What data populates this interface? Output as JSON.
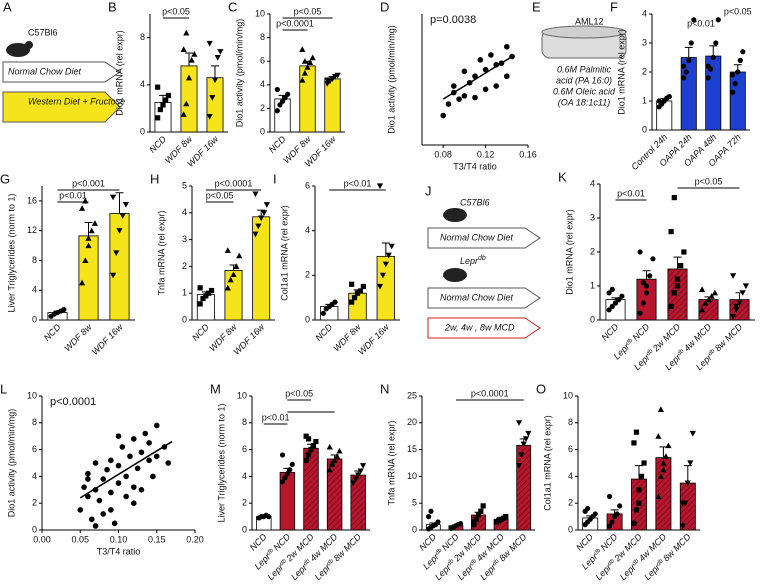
{
  "chart_data": [
    {
      "type": "bar",
      "panel": "B",
      "ylabel": "Dio1 mRNA (rel expr)",
      "categories": [
        "NCD",
        "WDF 8w",
        "WDF 16w"
      ],
      "values": [
        2.5,
        5.6,
        4.6
      ],
      "errors": [
        0.6,
        1.1,
        1.0
      ],
      "colors": [
        "#ffffff",
        "#f5e31b",
        "#f5e31b"
      ],
      "markers": [
        "square",
        "triangle",
        "triangle-down"
      ],
      "points": [
        [
          1.2,
          1.9,
          2.3,
          2.7,
          3.1,
          3.8
        ],
        [
          1.5,
          2.4,
          4.6,
          6.1,
          6.6,
          7.0,
          8.4
        ],
        [
          1.3,
          2.9,
          4.4,
          6.3,
          6.8,
          7.5
        ]
      ],
      "ylim": [
        0,
        10
      ],
      "yticks": [
        0,
        4,
        8
      ],
      "brackets": [
        {
          "from": 0,
          "to": 1,
          "text": "p<0.05"
        }
      ]
    },
    {
      "type": "bar",
      "panel": "C",
      "ylabel": "Dio1 activity (pmol/min/mg)",
      "categories": [
        "NCD",
        "WDF 8w",
        "WDF 16w"
      ],
      "values": [
        2.8,
        5.6,
        4.5
      ],
      "errors": [
        0.3,
        0.4,
        0.2
      ],
      "colors": [
        "#ffffff",
        "#f5e31b",
        "#f5e31b"
      ],
      "markers": [
        "circle",
        "triangle",
        "triangle-down"
      ],
      "points": [
        [
          1.8,
          2.3,
          2.6,
          2.9,
          3.2,
          3.6
        ],
        [
          4.4,
          5.0,
          5.5,
          5.9,
          6.3,
          7.0,
          6.0
        ],
        [
          4.1,
          4.3,
          4.5,
          4.7,
          4.8,
          4.4
        ]
      ],
      "ylim": [
        0,
        10
      ],
      "yticks": [
        0,
        2,
        4,
        6,
        8,
        10
      ],
      "brackets": [
        {
          "from": 0,
          "to": 1,
          "text": "p<0.0001"
        },
        {
          "from": 0,
          "to": 2,
          "text": "p<0.05"
        }
      ]
    },
    {
      "type": "scatter",
      "panel": "D",
      "ylabel": "Dio1 activity (pmol/min/mg)",
      "xlabel": "T3/T4 ratio",
      "annotation": "p=0.0038",
      "x": [
        0.08,
        0.085,
        0.09,
        0.095,
        0.1,
        0.1,
        0.105,
        0.11,
        0.11,
        0.115,
        0.12,
        0.12,
        0.125,
        0.13,
        0.13,
        0.135,
        0.14,
        0.14,
        0.145,
        0.09
      ],
      "y": [
        1.8,
        2.5,
        3.2,
        2.8,
        4.5,
        3.0,
        3.8,
        4.2,
        2.9,
        5.2,
        4.6,
        3.4,
        5.5,
        4.9,
        3.6,
        5.0,
        4.2,
        6.0,
        5.4,
        3.6
      ],
      "fit": {
        "x": [
          0.08,
          0.145
        ],
        "y": [
          2.8,
          5.4
        ]
      },
      "xlim": [
        0.06,
        0.16
      ],
      "xticks": [
        0.08,
        0.12,
        0.16
      ],
      "ylim": [
        0,
        8
      ],
      "yticks": []
    },
    {
      "type": "bar",
      "panel": "F",
      "ylabel": "Dio1 mRNA (rel expr)",
      "categories": [
        "Control 24h",
        "OAPA 24h",
        "OAPA 48h",
        "OAPA 72h"
      ],
      "values": [
        1.0,
        2.5,
        2.55,
        2.0
      ],
      "errors": [
        0.08,
        0.35,
        0.35,
        0.25
      ],
      "colors": [
        "#ffffff",
        "#1f3fd1",
        "#1f3fd1",
        "#1f3fd1"
      ],
      "markers": [
        "circle",
        "circle",
        "circle",
        "circle"
      ],
      "points": [
        [
          0.8,
          0.9,
          1.0,
          1.1,
          1.15,
          1.0
        ],
        [
          1.8,
          2.0,
          2.4,
          3.0,
          3.8,
          2.2
        ],
        [
          1.8,
          2.1,
          2.5,
          3.0,
          3.8,
          2.2
        ],
        [
          1.3,
          1.6,
          2.0,
          2.4,
          2.7,
          1.9
        ]
      ],
      "ylim": [
        0,
        4
      ],
      "yticks": [
        0,
        1,
        2,
        3,
        4
      ],
      "brackets": [
        {
          "from": 1,
          "to": 2,
          "text": "p<0.01",
          "line": false
        },
        {
          "from": 3,
          "to": 3,
          "text": "p<0.05",
          "line": false
        }
      ]
    },
    {
      "type": "bar",
      "panel": "G",
      "ylabel": "Liver Triglycerides (norm to 1)",
      "categories": [
        "NCD",
        "WDF 8w",
        "WDF 16w"
      ],
      "values": [
        1.0,
        11.3,
        14.3
      ],
      "errors": [
        0.2,
        1.8,
        2.8
      ],
      "colors": [
        "#ffffff",
        "#f5e31b",
        "#f5e31b"
      ],
      "markers": [
        "circle",
        "triangle",
        "triangle-down"
      ],
      "points": [
        [
          0.5,
          0.8,
          1.0,
          1.2,
          1.4
        ],
        [
          5,
          8,
          10,
          12,
          13,
          15,
          16,
          11
        ],
        [
          6,
          9,
          12,
          14,
          15.5,
          16.5
        ]
      ],
      "ylim": [
        0,
        18
      ],
      "yticks": [
        0,
        4,
        8,
        12,
        16
      ],
      "brackets": [
        {
          "from": 0,
          "to": 1,
          "text": "p<0.01"
        },
        {
          "from": 0,
          "to": 2,
          "text": "p<0.001"
        }
      ]
    },
    {
      "type": "bar",
      "panel": "H",
      "ylabel": "Tnfa mRNA (rel expr)",
      "categories": [
        "NCD",
        "WDF 8w",
        "WDF 16w"
      ],
      "values": [
        0.95,
        1.85,
        3.85
      ],
      "errors": [
        0.1,
        0.2,
        0.25
      ],
      "colors": [
        "#ffffff",
        "#f5e31b",
        "#f5e31b"
      ],
      "markers": [
        "square",
        "triangle",
        "triangle-down"
      ],
      "points": [
        [
          0.6,
          0.8,
          0.9,
          1.0,
          1.1,
          1.2
        ],
        [
          1.2,
          1.5,
          1.7,
          2.0,
          2.4,
          2.6
        ],
        [
          3.2,
          3.5,
          3.8,
          4.0,
          4.3,
          4.7
        ]
      ],
      "ylim": [
        0,
        5
      ],
      "yticks": [
        0,
        1,
        2,
        3,
        4,
        5
      ],
      "brackets": [
        {
          "from": 0,
          "to": 1,
          "text": "p<0.05"
        },
        {
          "from": 0,
          "to": 2,
          "text": "p<0.0001"
        }
      ]
    },
    {
      "type": "bar",
      "panel": "I",
      "ylabel": "Col1a1 mRNA (rel expr)",
      "categories": [
        "NCD",
        "WDF 8w",
        "WDF 16w"
      ],
      "values": [
        0.6,
        1.2,
        2.85
      ],
      "errors": [
        0.1,
        0.15,
        0.6
      ],
      "colors": [
        "#ffffff",
        "#f5e31b",
        "#f5e31b"
      ],
      "markers": [
        "circle",
        "square",
        "triangle-down"
      ],
      "points": [
        [
          0.3,
          0.5,
          0.6,
          0.7,
          0.8
        ],
        [
          0.8,
          1.0,
          1.2,
          1.3,
          1.5,
          1.6
        ],
        [
          1.5,
          2.0,
          2.5,
          2.9,
          3.3,
          6.0
        ]
      ],
      "ylim": [
        0,
        6
      ],
      "yticks": [
        0,
        2,
        4,
        6
      ],
      "brackets": [
        {
          "from": 0,
          "to": 2,
          "text": "p<0.01"
        }
      ]
    },
    {
      "type": "bar",
      "panel": "K",
      "ylabel": "Dio1 mRNA (rel expr)",
      "categories": [
        [
          "NCD"
        ],
        [
          "Lepr",
          "db",
          "NCD"
        ],
        [
          "Lepr",
          "db",
          "2w MCD"
        ],
        [
          "Lepr",
          "db",
          "4w MCD"
        ],
        [
          "Lepr",
          "db",
          "8w MCD"
        ]
      ],
      "values": [
        0.6,
        1.2,
        1.5,
        0.6,
        0.6
      ],
      "errors": [
        0.05,
        0.25,
        0.35,
        0.08,
        0.2
      ],
      "colors": [
        "#ffffff",
        "#b8162e",
        "#b8162e",
        "#b8162e",
        "#b8162e"
      ],
      "hatch": [
        false,
        false,
        true,
        true,
        true
      ],
      "markers": [
        "circle",
        "circle",
        "square",
        "triangle",
        "triangle-down"
      ],
      "points": [
        [
          0.3,
          0.4,
          0.5,
          0.6,
          0.7,
          0.8,
          0.9,
          0.5,
          0.6
        ],
        [
          0.2,
          0.5,
          1.0,
          1.3,
          1.8,
          2.0,
          1.1,
          0.8
        ],
        [
          0.4,
          0.8,
          1.2,
          1.6,
          2.0,
          2.6,
          3.6,
          1.0
        ],
        [
          0.3,
          0.5,
          0.6,
          0.7,
          0.8,
          0.9
        ],
        [
          0.1,
          0.3,
          0.5,
          0.8,
          1.0,
          1.3,
          0.4
        ]
      ],
      "ylim": [
        0,
        4
      ],
      "yticks": [
        0,
        1,
        2,
        3,
        4
      ],
      "brackets": [
        {
          "from": 0,
          "to": 1,
          "text": "p<0.01"
        },
        {
          "from": 2,
          "to": 4,
          "text": "p<0.05"
        }
      ]
    },
    {
      "type": "scatter",
      "panel": "L",
      "ylabel": "Dio1 activity (pmol/min/mg)",
      "xlabel": "T3/T4 ratio",
      "annotation": "p<0.0001",
      "x": [
        0.05,
        0.055,
        0.06,
        0.06,
        0.065,
        0.07,
        0.07,
        0.075,
        0.08,
        0.08,
        0.085,
        0.09,
        0.09,
        0.095,
        0.1,
        0.1,
        0.105,
        0.11,
        0.11,
        0.115,
        0.12,
        0.12,
        0.125,
        0.13,
        0.13,
        0.135,
        0.14,
        0.14,
        0.145,
        0.15,
        0.15,
        0.16,
        0.165,
        0.07,
        0.09,
        0.12,
        0.06,
        0.1
      ],
      "y": [
        1.5,
        3.2,
        2.5,
        4.2,
        0.8,
        3.0,
        5.0,
        2.2,
        3.8,
        1.2,
        4.5,
        2.8,
        5.2,
        0.5,
        3.5,
        4.8,
        6.2,
        2.5,
        4.0,
        5.5,
        3.2,
        6.8,
        4.6,
        5.8,
        3.0,
        7.2,
        5.2,
        6.5,
        4.0,
        7.8,
        5.5,
        6.2,
        5.0,
        0.3,
        1.5,
        2.0,
        3.8,
        7.0
      ],
      "fit": {
        "x": [
          0.05,
          0.17
        ],
        "y": [
          2.4,
          6.6
        ]
      },
      "xlim": [
        0,
        0.2
      ],
      "xticks": [
        {
          "value": 0,
          "label": "0.00"
        },
        {
          "value": 0.05,
          "label": "0.05"
        },
        {
          "value": 0.1,
          "label": "0.10"
        },
        {
          "value": 0.15,
          "label": "0.15"
        },
        {
          "value": 0.2,
          "label": "0.20"
        }
      ],
      "ylim": [
        0,
        10
      ],
      "yticks": [
        0,
        2,
        4,
        6,
        8,
        10
      ]
    },
    {
      "type": "bar",
      "panel": "M",
      "ylabel": "Liver Triglycerides (norm to 1)",
      "categories": [
        [
          "NCD"
        ],
        [
          "Lepr",
          "db",
          "NCD"
        ],
        [
          "Lepr",
          "db",
          "2w MCD"
        ],
        [
          "Lepr",
          "db",
          "4w MCD"
        ],
        [
          "Lepr",
          "db",
          "8w MCD"
        ]
      ],
      "values": [
        1.0,
        4.3,
        6.1,
        5.3,
        4.1
      ],
      "errors": [
        0.05,
        0.3,
        0.3,
        0.3,
        0.3
      ],
      "colors": [
        "#ffffff",
        "#b8162e",
        "#b8162e",
        "#b8162e",
        "#b8162e"
      ],
      "hatch": [
        false,
        false,
        true,
        true,
        true
      ],
      "markers": [
        "circle",
        "circle",
        "square",
        "triangle",
        "triangle-down"
      ],
      "points": [
        [
          0.9,
          1.0,
          1.0,
          1.1,
          1.0
        ],
        [
          3.6,
          3.9,
          4.2,
          4.5,
          4.9,
          5.6
        ],
        [
          5.2,
          5.6,
          6.0,
          6.3,
          6.6,
          7.0,
          6.8
        ],
        [
          4.5,
          4.9,
          5.2,
          5.5,
          5.9,
          6.2,
          5.0
        ],
        [
          3.5,
          3.8,
          4.1,
          4.4,
          4.8
        ]
      ],
      "ylim": [
        0,
        10
      ],
      "yticks": [
        0,
        2,
        4,
        6,
        8,
        10
      ],
      "brackets": [
        {
          "from": 0,
          "to": 1,
          "text": "p<0.01"
        },
        {
          "from": 1,
          "to": 3
        },
        {
          "from": 1,
          "to": 2,
          "text": "p<0.05"
        }
      ]
    },
    {
      "type": "bar",
      "panel": "N",
      "ylabel": "Tnfa mRNA (rel expr)",
      "categories": [
        [
          "NCD"
        ],
        [
          "Lepr",
          "db",
          "NCD"
        ],
        [
          "Lepr",
          "db",
          "2w MCD"
        ],
        [
          "Lepr",
          "db",
          "4w MCD"
        ],
        [
          "Lepr",
          "db",
          "8w MCD"
        ]
      ],
      "values": [
        1.0,
        0.8,
        2.8,
        2.0,
        15.8
      ],
      "errors": [
        0.3,
        0.15,
        0.5,
        0.3,
        1.2
      ],
      "colors": [
        "#ffffff",
        "#b8162e",
        "#b8162e",
        "#b8162e",
        "#b8162e"
      ],
      "hatch": [
        false,
        false,
        true,
        true,
        true
      ],
      "markers": [
        "circle",
        "circle",
        "square",
        "square",
        "triangle-down"
      ],
      "points": [
        [
          0.2,
          0.5,
          0.8,
          1.0,
          1.5,
          2.5,
          3.5
        ],
        [
          0.3,
          0.5,
          0.8,
          1.0,
          1.2
        ],
        [
          1.0,
          2.0,
          2.8,
          3.5,
          4.5,
          1.5
        ],
        [
          1.5,
          1.8,
          2.0,
          2.2,
          2.5
        ],
        [
          12,
          14,
          16,
          17,
          18,
          20
        ]
      ],
      "ylim": [
        0,
        25
      ],
      "yticks": [
        0,
        5,
        10,
        15,
        20,
        25
      ],
      "brackets": [
        {
          "from": 1,
          "to": 4,
          "text": "p<0.0001"
        }
      ]
    },
    {
      "type": "bar",
      "panel": "O",
      "ylabel": "Col1a1 mRNA (rel expr)",
      "categories": [
        [
          "NCD"
        ],
        [
          "Lepr",
          "db",
          "NCD"
        ],
        [
          "Lepr",
          "db",
          "2w MCD"
        ],
        [
          "Lepr",
          "db",
          "4w MCD"
        ],
        [
          "Lepr",
          "db",
          "8w MCD"
        ]
      ],
      "values": [
        0.9,
        1.2,
        3.8,
        5.4,
        3.5
      ],
      "errors": [
        0.15,
        0.3,
        1.0,
        0.8,
        1.3
      ],
      "colors": [
        "#ffffff",
        "#b8162e",
        "#b8162e",
        "#b8162e",
        "#b8162e"
      ],
      "hatch": [
        false,
        false,
        true,
        true,
        true
      ],
      "markers": [
        "circle",
        "circle",
        "square",
        "triangle",
        "triangle-down"
      ],
      "points": [
        [
          0.4,
          0.6,
          0.8,
          1.0,
          1.2,
          1.4,
          1.6
        ],
        [
          0.3,
          0.6,
          1.0,
          1.2,
          1.8,
          2.5
        ],
        [
          0.5,
          1.5,
          3.0,
          4.0,
          5.0,
          6.5,
          7.3,
          2.0
        ],
        [
          2.5,
          4.0,
          5.0,
          5.5,
          6.3,
          7.0,
          9.0,
          4.5
        ],
        [
          0.3,
          2.0,
          3.5,
          5.0,
          7.2,
          2.0
        ]
      ],
      "ylim": [
        0,
        10
      ],
      "yticks": [
        0,
        2,
        4,
        6,
        8,
        10
      ],
      "brackets": []
    }
  ],
  "diagrams": {
    "A": {
      "panel": "A",
      "strain": "C57Bl6",
      "diet1": "Normal Chow Diet",
      "diet2": "Western Diet + Fructose"
    },
    "E": {
      "panel": "E",
      "cell": "AML12",
      "line1": "0.6M Palmitic",
      "line2": "acid (PA 16:0)",
      "line3": "0.6M Oleic acid",
      "line4": "(OA 18:1c11)"
    },
    "J": {
      "panel": "J",
      "strain1": "C57Bl6",
      "diet1": "Normal Chow Diet",
      "strain2": "Lepr",
      "strain2_sup": "db",
      "diet2": "Normal Chow Diet",
      "diet3": "2w, 4w , 8w MCD"
    }
  }
}
